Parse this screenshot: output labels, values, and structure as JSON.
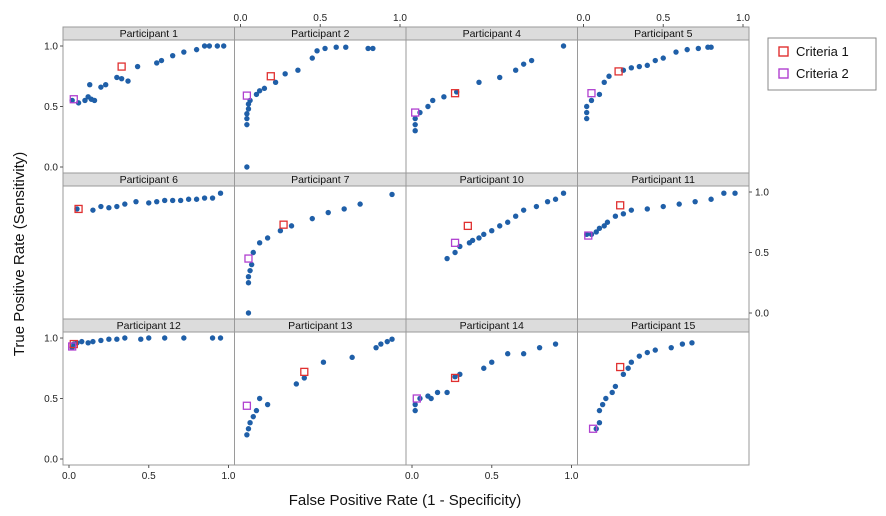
{
  "chart_data": {
    "type": "scatter",
    "xlabel": "False Positive Rate (1 - Specificity)",
    "ylabel": "True Positive Rate (Sensitivity)",
    "xlim": [
      0,
      1
    ],
    "ylim": [
      0,
      1
    ],
    "x_ticks": [
      "0.0",
      "0.5",
      "1.0"
    ],
    "y_ticks": [
      "0.0",
      "0.5",
      "1.0"
    ],
    "grid": false,
    "legend": {
      "placement": "right",
      "entries": [
        {
          "name": "Criteria 1",
          "color": "#e03030"
        },
        {
          "name": "Criteria 2",
          "color": "#b040d0"
        }
      ]
    },
    "colors": {
      "points": "#1f5fa8",
      "panel_header": "#dcdcdc",
      "panel_border": "#9a9a9a"
    },
    "panels": [
      {
        "title": "Participant 1",
        "points": [
          [
            0.02,
            0.55
          ],
          [
            0.06,
            0.53
          ],
          [
            0.1,
            0.55
          ],
          [
            0.12,
            0.58
          ],
          [
            0.14,
            0.56
          ],
          [
            0.16,
            0.55
          ],
          [
            0.13,
            0.68
          ],
          [
            0.2,
            0.66
          ],
          [
            0.23,
            0.68
          ],
          [
            0.3,
            0.74
          ],
          [
            0.33,
            0.73
          ],
          [
            0.37,
            0.71
          ],
          [
            0.43,
            0.83
          ],
          [
            0.55,
            0.86
          ],
          [
            0.58,
            0.88
          ],
          [
            0.65,
            0.92
          ],
          [
            0.72,
            0.95
          ],
          [
            0.8,
            0.97
          ],
          [
            0.85,
            1.0
          ],
          [
            0.88,
            1.0
          ],
          [
            0.93,
            1.0
          ],
          [
            0.97,
            1.0
          ]
        ],
        "criteria1": [
          0.33,
          0.83
        ],
        "criteria2": [
          0.03,
          0.56
        ]
      },
      {
        "title": "Participant 2",
        "points": [
          [
            0.04,
            0.0
          ],
          [
            0.04,
            0.35
          ],
          [
            0.04,
            0.4
          ],
          [
            0.04,
            0.44
          ],
          [
            0.05,
            0.48
          ],
          [
            0.05,
            0.52
          ],
          [
            0.06,
            0.55
          ],
          [
            0.1,
            0.6
          ],
          [
            0.12,
            0.63
          ],
          [
            0.15,
            0.65
          ],
          [
            0.22,
            0.7
          ],
          [
            0.28,
            0.77
          ],
          [
            0.36,
            0.8
          ],
          [
            0.45,
            0.9
          ],
          [
            0.48,
            0.96
          ],
          [
            0.53,
            0.98
          ],
          [
            0.6,
            0.99
          ],
          [
            0.66,
            0.99
          ],
          [
            0.8,
            0.98
          ],
          [
            0.83,
            0.98
          ]
        ],
        "criteria1": [
          0.19,
          0.75
        ],
        "criteria2": [
          0.04,
          0.59
        ]
      },
      {
        "title": "Participant 4",
        "points": [
          [
            0.02,
            0.3
          ],
          [
            0.02,
            0.35
          ],
          [
            0.02,
            0.4
          ],
          [
            0.05,
            0.45
          ],
          [
            0.1,
            0.5
          ],
          [
            0.13,
            0.55
          ],
          [
            0.2,
            0.58
          ],
          [
            0.28,
            0.62
          ],
          [
            0.42,
            0.7
          ],
          [
            0.55,
            0.74
          ],
          [
            0.65,
            0.8
          ],
          [
            0.7,
            0.85
          ],
          [
            0.75,
            0.88
          ],
          [
            0.95,
            1.0
          ]
        ],
        "criteria1": [
          0.27,
          0.61
        ],
        "criteria2": [
          0.02,
          0.45
        ]
      },
      {
        "title": "Participant 5",
        "points": [
          [
            0.02,
            0.4
          ],
          [
            0.02,
            0.45
          ],
          [
            0.02,
            0.5
          ],
          [
            0.05,
            0.55
          ],
          [
            0.1,
            0.6
          ],
          [
            0.13,
            0.7
          ],
          [
            0.16,
            0.75
          ],
          [
            0.25,
            0.8
          ],
          [
            0.3,
            0.82
          ],
          [
            0.35,
            0.83
          ],
          [
            0.4,
            0.84
          ],
          [
            0.45,
            0.88
          ],
          [
            0.5,
            0.9
          ],
          [
            0.58,
            0.95
          ],
          [
            0.65,
            0.97
          ],
          [
            0.72,
            0.98
          ],
          [
            0.78,
            0.99
          ],
          [
            0.8,
            0.99
          ]
        ],
        "criteria1": [
          0.22,
          0.79
        ],
        "criteria2": [
          0.05,
          0.61
        ]
      },
      {
        "title": "Participant 6",
        "points": [
          [
            0.05,
            0.86
          ],
          [
            0.15,
            0.85
          ],
          [
            0.2,
            0.88
          ],
          [
            0.25,
            0.87
          ],
          [
            0.3,
            0.88
          ],
          [
            0.35,
            0.9
          ],
          [
            0.42,
            0.92
          ],
          [
            0.5,
            0.91
          ],
          [
            0.55,
            0.92
          ],
          [
            0.6,
            0.93
          ],
          [
            0.65,
            0.93
          ],
          [
            0.7,
            0.93
          ],
          [
            0.75,
            0.94
          ],
          [
            0.8,
            0.94
          ],
          [
            0.85,
            0.95
          ],
          [
            0.9,
            0.95
          ],
          [
            0.95,
            0.99
          ]
        ],
        "criteria1": [
          0.06,
          0.86
        ],
        "criteria2": null
      },
      {
        "title": "Participant 7",
        "points": [
          [
            0.05,
            0.0
          ],
          [
            0.05,
            0.25
          ],
          [
            0.05,
            0.3
          ],
          [
            0.06,
            0.35
          ],
          [
            0.07,
            0.4
          ],
          [
            0.08,
            0.5
          ],
          [
            0.12,
            0.58
          ],
          [
            0.17,
            0.62
          ],
          [
            0.25,
            0.68
          ],
          [
            0.32,
            0.72
          ],
          [
            0.45,
            0.78
          ],
          [
            0.55,
            0.83
          ],
          [
            0.65,
            0.86
          ],
          [
            0.75,
            0.9
          ],
          [
            0.95,
            0.98
          ]
        ],
        "criteria1": [
          0.27,
          0.73
        ],
        "criteria2": [
          0.05,
          0.45
        ]
      },
      {
        "title": "Participant 10",
        "points": [
          [
            0.22,
            0.45
          ],
          [
            0.27,
            0.5
          ],
          [
            0.3,
            0.55
          ],
          [
            0.36,
            0.58
          ],
          [
            0.38,
            0.6
          ],
          [
            0.42,
            0.62
          ],
          [
            0.45,
            0.65
          ],
          [
            0.5,
            0.68
          ],
          [
            0.55,
            0.72
          ],
          [
            0.6,
            0.75
          ],
          [
            0.65,
            0.8
          ],
          [
            0.7,
            0.85
          ],
          [
            0.78,
            0.88
          ],
          [
            0.85,
            0.92
          ],
          [
            0.9,
            0.94
          ],
          [
            0.95,
            0.99
          ]
        ],
        "criteria1": [
          0.35,
          0.72
        ],
        "criteria2": [
          0.27,
          0.58
        ]
      },
      {
        "title": "Participant 11",
        "points": [
          [
            0.02,
            0.65
          ],
          [
            0.05,
            0.65
          ],
          [
            0.08,
            0.67
          ],
          [
            0.1,
            0.7
          ],
          [
            0.13,
            0.72
          ],
          [
            0.15,
            0.75
          ],
          [
            0.2,
            0.8
          ],
          [
            0.25,
            0.82
          ],
          [
            0.3,
            0.85
          ],
          [
            0.4,
            0.86
          ],
          [
            0.5,
            0.88
          ],
          [
            0.6,
            0.9
          ],
          [
            0.7,
            0.92
          ],
          [
            0.8,
            0.94
          ],
          [
            0.88,
            0.99
          ],
          [
            0.95,
            0.99
          ]
        ],
        "criteria1": [
          0.23,
          0.89
        ],
        "criteria2": [
          0.03,
          0.64
        ]
      },
      {
        "title": "Participant 12",
        "points": [
          [
            0.02,
            0.92
          ],
          [
            0.03,
            0.95
          ],
          [
            0.05,
            0.96
          ],
          [
            0.08,
            0.97
          ],
          [
            0.12,
            0.96
          ],
          [
            0.15,
            0.97
          ],
          [
            0.2,
            0.98
          ],
          [
            0.25,
            0.99
          ],
          [
            0.3,
            0.99
          ],
          [
            0.35,
            1.0
          ],
          [
            0.45,
            0.99
          ],
          [
            0.5,
            1.0
          ],
          [
            0.6,
            1.0
          ],
          [
            0.72,
            1.0
          ],
          [
            0.9,
            1.0
          ],
          [
            0.95,
            1.0
          ]
        ],
        "criteria1": [
          0.03,
          0.95
        ],
        "criteria2": [
          0.02,
          0.93
        ]
      },
      {
        "title": "Participant 13",
        "points": [
          [
            0.04,
            0.2
          ],
          [
            0.05,
            0.25
          ],
          [
            0.06,
            0.3
          ],
          [
            0.08,
            0.35
          ],
          [
            0.1,
            0.4
          ],
          [
            0.12,
            0.5
          ],
          [
            0.17,
            0.45
          ],
          [
            0.35,
            0.62
          ],
          [
            0.4,
            0.67
          ],
          [
            0.52,
            0.8
          ],
          [
            0.7,
            0.84
          ],
          [
            0.85,
            0.92
          ],
          [
            0.88,
            0.95
          ],
          [
            0.92,
            0.97
          ],
          [
            0.95,
            0.99
          ]
        ],
        "criteria1": [
          0.4,
          0.72
        ],
        "criteria2": [
          0.04,
          0.44
        ]
      },
      {
        "title": "Participant 14",
        "points": [
          [
            0.02,
            0.4
          ],
          [
            0.02,
            0.45
          ],
          [
            0.05,
            0.5
          ],
          [
            0.1,
            0.52
          ],
          [
            0.12,
            0.5
          ],
          [
            0.16,
            0.55
          ],
          [
            0.22,
            0.55
          ],
          [
            0.27,
            0.68
          ],
          [
            0.3,
            0.7
          ],
          [
            0.45,
            0.75
          ],
          [
            0.5,
            0.8
          ],
          [
            0.6,
            0.87
          ],
          [
            0.7,
            0.87
          ],
          [
            0.8,
            0.92
          ],
          [
            0.9,
            0.95
          ]
        ],
        "criteria1": [
          0.27,
          0.67
        ],
        "criteria2": [
          0.03,
          0.5
        ]
      },
      {
        "title": "Participant 15",
        "points": [
          [
            0.08,
            0.25
          ],
          [
            0.1,
            0.3
          ],
          [
            0.1,
            0.4
          ],
          [
            0.12,
            0.45
          ],
          [
            0.14,
            0.5
          ],
          [
            0.18,
            0.55
          ],
          [
            0.2,
            0.6
          ],
          [
            0.25,
            0.7
          ],
          [
            0.28,
            0.75
          ],
          [
            0.3,
            0.8
          ],
          [
            0.35,
            0.85
          ],
          [
            0.4,
            0.88
          ],
          [
            0.45,
            0.9
          ],
          [
            0.55,
            0.92
          ],
          [
            0.62,
            0.95
          ],
          [
            0.68,
            0.96
          ]
        ],
        "criteria1": [
          0.23,
          0.76
        ],
        "criteria2": [
          0.06,
          0.25
        ]
      }
    ]
  }
}
